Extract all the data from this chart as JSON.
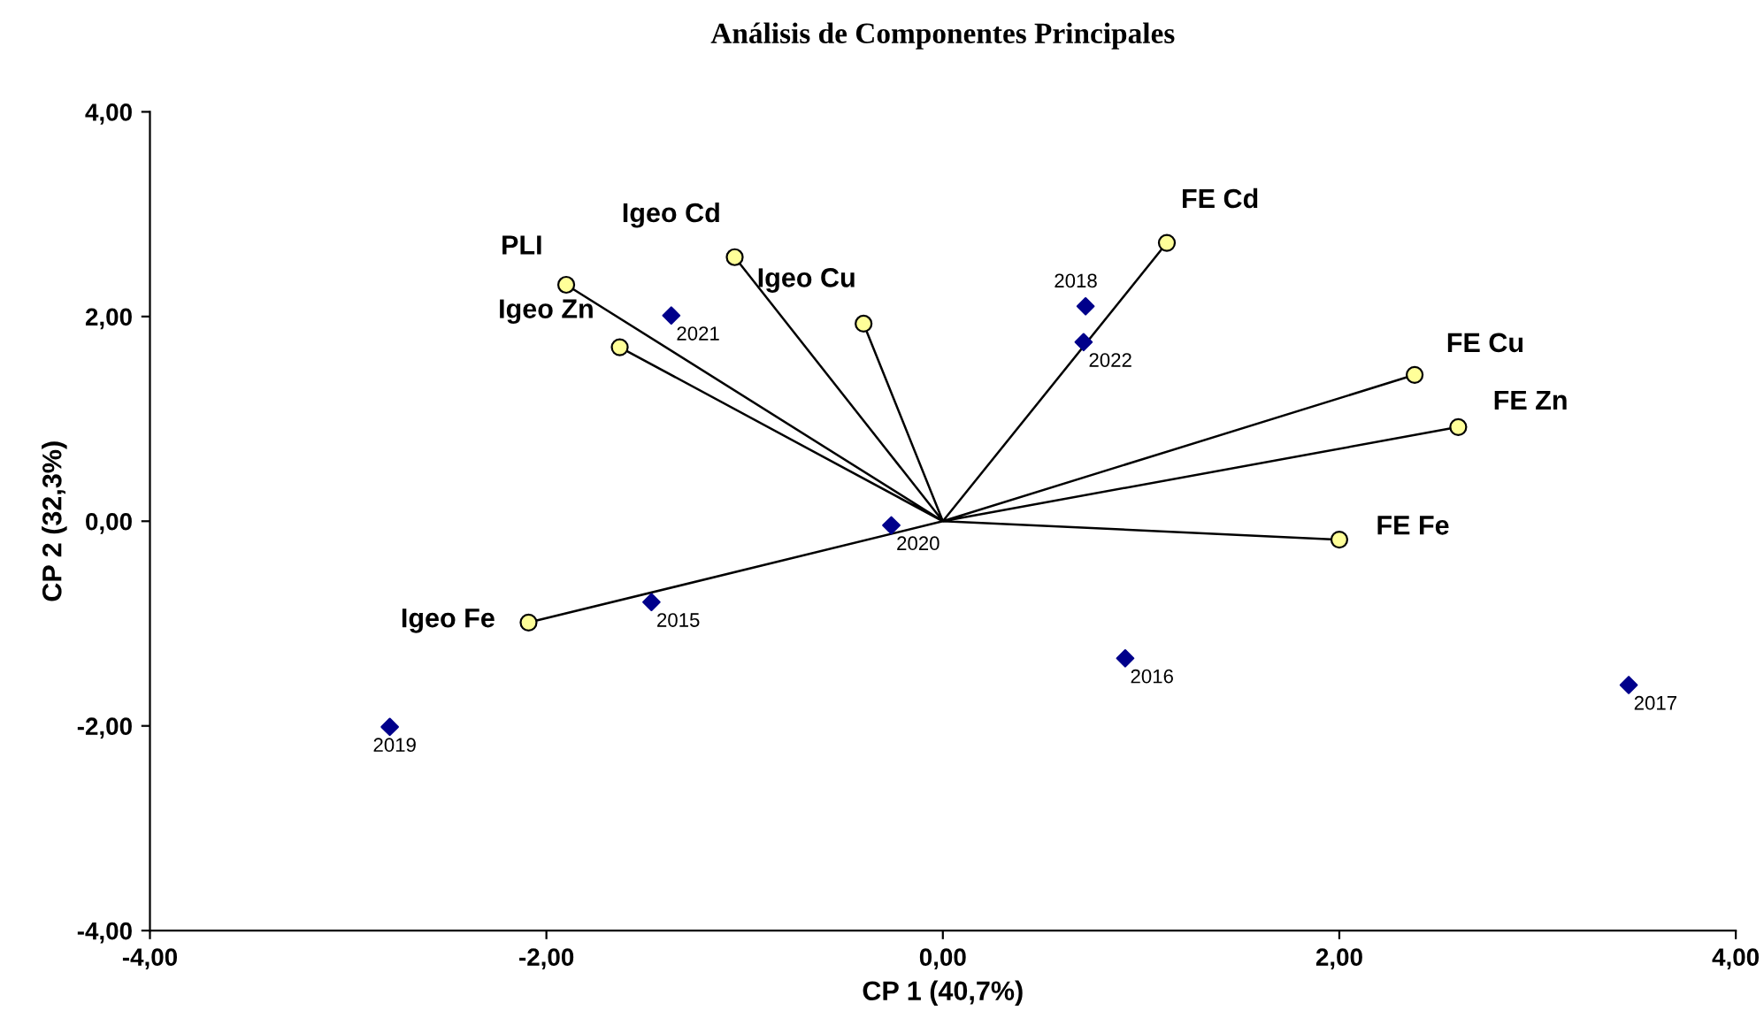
{
  "chart_data": {
    "type": "scatter",
    "title": "Análisis de Componentes Principales",
    "xlabel": "CP 1 (40,7%)",
    "ylabel": "CP 2 (32,3%)",
    "xlim": [
      -4,
      4
    ],
    "ylim": [
      -4,
      4
    ],
    "xticks": [
      {
        "value": -4,
        "label": "-4,00"
      },
      {
        "value": -2,
        "label": "-2,00"
      },
      {
        "value": 0,
        "label": "0,00"
      },
      {
        "value": 2,
        "label": "2,00"
      },
      {
        "value": 4,
        "label": "4,00"
      }
    ],
    "yticks": [
      {
        "value": -4,
        "label": "-4,00"
      },
      {
        "value": -2,
        "label": "-2,00"
      },
      {
        "value": 0,
        "label": "0,00"
      },
      {
        "value": 2,
        "label": "2,00"
      },
      {
        "value": 4,
        "label": "4,00"
      }
    ],
    "grid": false,
    "legend": false,
    "series": [
      {
        "type": "line",
        "color": "#000000",
        "marker": "none",
        "x": [
          0,
          -1.9,
          0,
          -1.05,
          0,
          -0.4,
          0,
          -1.63,
          0,
          -2.09,
          0,
          1.13,
          0,
          2.38,
          0,
          2.6,
          0,
          2.0
        ],
        "values": [
          0,
          2.31,
          0,
          2.58,
          0,
          1.93,
          0,
          1.7,
          0,
          -0.99,
          0,
          2.72,
          0,
          1.43,
          0,
          0.92,
          0,
          -0.18
        ]
      },
      {
        "color": "#ffff99",
        "marker": "circle",
        "x": [
          -1.9,
          -1.05,
          -0.4,
          -1.63,
          -2.09,
          1.13,
          2.38,
          2.6,
          2.0
        ],
        "values": [
          2.31,
          2.58,
          1.93,
          1.7,
          -0.99,
          2.72,
          1.43,
          0.92,
          -0.18
        ]
      },
      {
        "color": "#00008b",
        "marker": "diamond",
        "x": [
          -1.37,
          0.72,
          0.71,
          -0.26,
          -1.47,
          0.92,
          3.46,
          -2.79
        ],
        "values": [
          2.01,
          2.1,
          1.75,
          -0.04,
          -0.79,
          -1.34,
          -1.6,
          -2.01
        ]
      }
    ],
    "annotations": [
      {
        "text": "PLI",
        "x": -1.9,
        "y": 2.31
      },
      {
        "text": "Igeo Cd",
        "x": -1.05,
        "y": 2.58
      },
      {
        "text": "Igeo Cu",
        "x": -0.4,
        "y": 1.93
      },
      {
        "text": "Igeo Zn",
        "x": -1.63,
        "y": 1.7
      },
      {
        "text": "Igeo Fe",
        "x": -2.09,
        "y": -0.99
      },
      {
        "text": "FE Cd",
        "x": 1.13,
        "y": 2.72
      },
      {
        "text": "FE Cu",
        "x": 2.38,
        "y": 1.43
      },
      {
        "text": "FE Zn",
        "x": 2.6,
        "y": 0.92
      },
      {
        "text": "FE Fe",
        "x": 2.0,
        "y": -0.18
      },
      {
        "text": "2021",
        "x": -1.37,
        "y": 2.01
      },
      {
        "text": "2018",
        "x": 0.72,
        "y": 2.1
      },
      {
        "text": "2022",
        "x": 0.71,
        "y": 1.75
      },
      {
        "text": "2020",
        "x": -0.26,
        "y": -0.04
      },
      {
        "text": "2015",
        "x": -1.47,
        "y": -0.79
      },
      {
        "text": "2016",
        "x": 0.92,
        "y": -1.34
      },
      {
        "text": "2017",
        "x": 3.46,
        "y": -1.6
      },
      {
        "text": "2019",
        "x": -2.79,
        "y": -2.01
      }
    ]
  }
}
